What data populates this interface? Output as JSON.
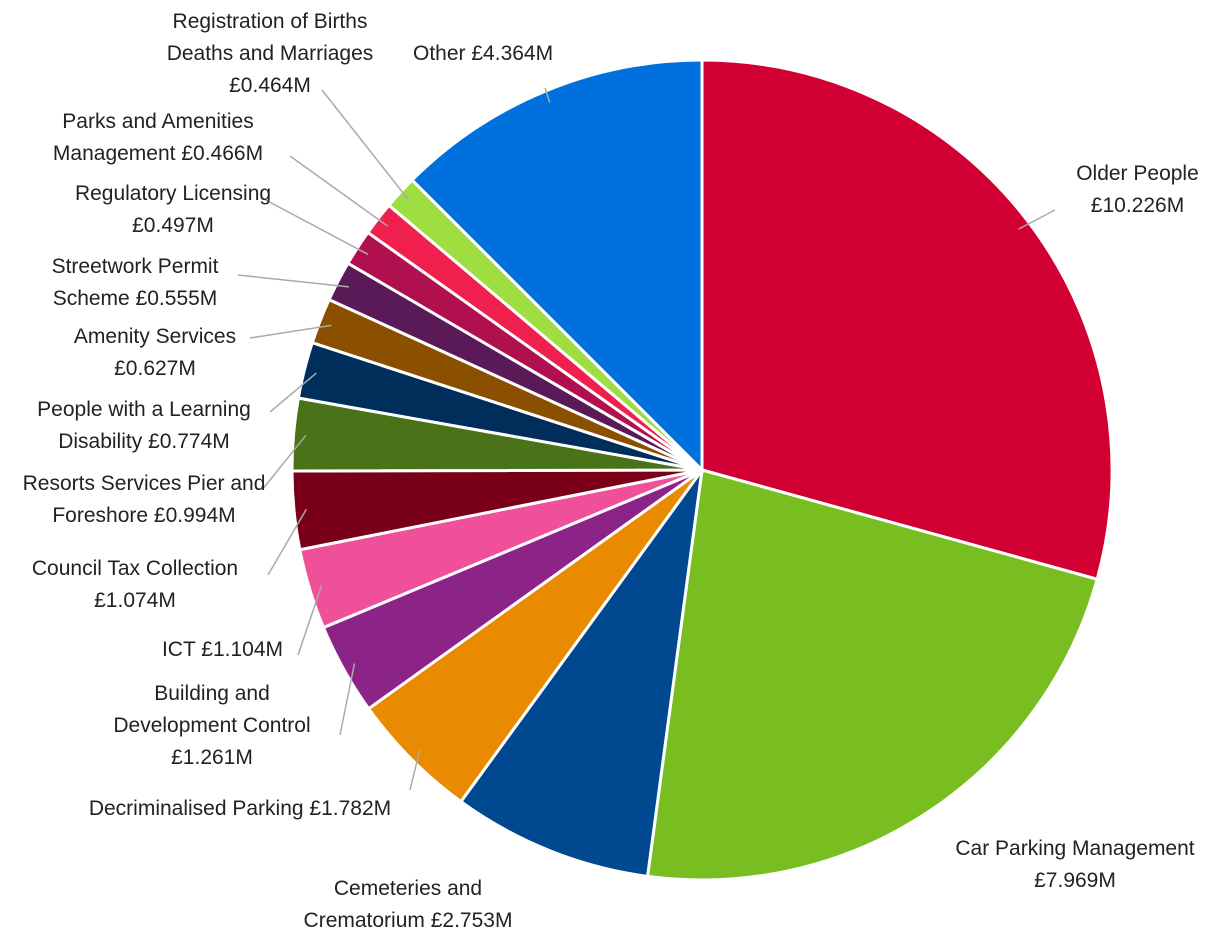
{
  "chart_data": {
    "type": "pie",
    "categories": [
      "Older People",
      "Car Parking Management",
      "Cemeteries and Crematorium",
      "Decriminalised Parking",
      "Building and Development Control",
      "ICT",
      "Council Tax Collection",
      "Resorts Services Pier and Foreshore",
      "People with a Learning Disability",
      "Amenity Services",
      "Streetwork Permit Scheme",
      "Regulatory Licensing",
      "Parks and Amenities Management",
      "Registration of Births Deaths and Marriages",
      "Other"
    ],
    "values": [
      10.226,
      7.969,
      2.753,
      1.782,
      1.261,
      1.104,
      1.074,
      0.994,
      0.774,
      0.627,
      0.555,
      0.497,
      0.466,
      0.464,
      4.364
    ],
    "value_labels": [
      "£10.226M",
      "£7.969M",
      "£2.753M",
      "£1.782M",
      "£1.261M",
      "£1.104M",
      "£1.074M",
      "£0.994M",
      "£0.774M",
      "£0.627M",
      "£0.555M",
      "£0.497M",
      "£0.466M",
      "£0.464M",
      "£4.364M"
    ],
    "colors": [
      "#d20032",
      "#78be20",
      "#004990",
      "#ea8a00",
      "#8c2488",
      "#f0509a",
      "#7a0019",
      "#4a7218",
      "#002e5a",
      "#8b4f00",
      "#5a1a58",
      "#b0104e",
      "#f0204e",
      "#9ede40",
      "#0070dd"
    ]
  }
}
